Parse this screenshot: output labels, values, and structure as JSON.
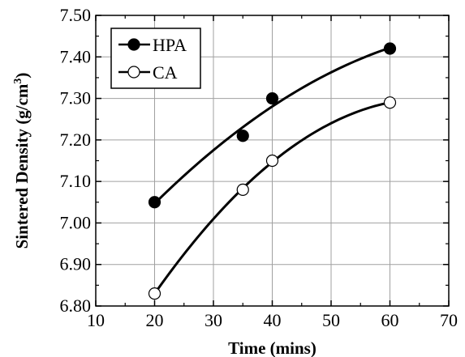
{
  "chart_data": {
    "type": "scatter",
    "xlabel": "Time (mins)",
    "ylabel": "Sintered Density (g/cm³)",
    "ylabel_parts": {
      "main": "Sintered Density (g/cm",
      "sup": "3",
      "end": ")"
    },
    "xlim": [
      10,
      70
    ],
    "ylim": [
      6.8,
      7.5
    ],
    "x_ticks": [
      10,
      20,
      30,
      40,
      50,
      60,
      70
    ],
    "x_tick_labels": [
      "10",
      "20",
      "30",
      "40",
      "50",
      "60",
      "70"
    ],
    "y_ticks": [
      6.8,
      6.9,
      7.0,
      7.1,
      7.2,
      7.3,
      7.4,
      7.5
    ],
    "y_tick_labels": [
      "6.80",
      "6.90",
      "7.00",
      "7.10",
      "7.20",
      "7.30",
      "7.40",
      "7.50"
    ],
    "grid": true,
    "legend_position": "top-left",
    "series": [
      {
        "name": "HPA",
        "marker": "filled-circle",
        "color": "#000000",
        "x": [
          20,
          35,
          40,
          60
        ],
        "y": [
          7.05,
          7.21,
          7.3,
          7.42
        ],
        "trend_line": true
      },
      {
        "name": "CA",
        "marker": "open-circle",
        "color": "#000000",
        "x": [
          20,
          35,
          40,
          60
        ],
        "y": [
          6.83,
          7.08,
          7.15,
          7.29
        ],
        "trend_line": true
      }
    ]
  }
}
